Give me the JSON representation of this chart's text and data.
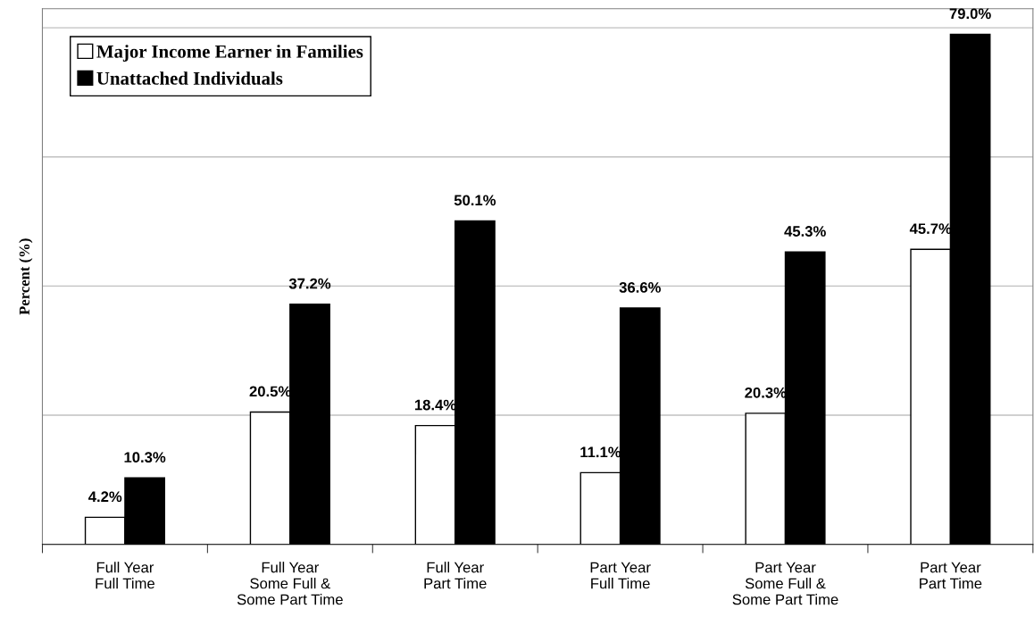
{
  "chart_data": {
    "type": "bar",
    "ylabel": "Percent (%)",
    "categories": [
      "Full Year\nFull Time",
      "Full Year\nSome Full &\nSome Part Time",
      "Full Year\nPart Time",
      "Part Year\nFull Time",
      "Part Year\nSome Full &\nSome Part Time",
      "Part Year\nPart Time"
    ],
    "series": [
      {
        "name": "Major Income Earner in Families",
        "color": "#ffffff",
        "values": [
          4.2,
          20.5,
          18.4,
          11.1,
          20.3,
          45.7
        ],
        "value_labels": [
          "4.2%",
          "20.5%",
          "18.4%",
          "11.1%",
          "20.3%",
          "45.7%"
        ]
      },
      {
        "name": "Unattached Individuals",
        "color": "#000000",
        "values": [
          10.3,
          37.2,
          50.1,
          36.6,
          45.3,
          79.0
        ],
        "value_labels": [
          "10.3%",
          "37.2%",
          "50.1%",
          "36.6%",
          "45.3%",
          "79.0%"
        ]
      }
    ],
    "grid": "y",
    "legend": "top left",
    "tick_labels": "x"
  }
}
